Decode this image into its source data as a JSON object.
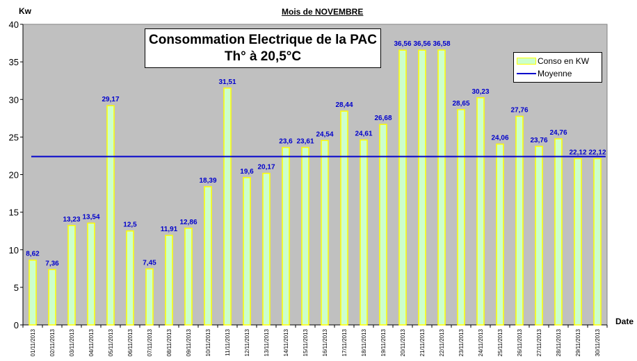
{
  "chart_data": {
    "type": "bar",
    "title": "Consommation Electrique de la PAC",
    "subtitle": "Th° à  20,5°C",
    "header": "Mois  de  NOVEMBRE",
    "xlabel": "Date",
    "ylabel": "Kw",
    "ylim": [
      0,
      40
    ],
    "yticks": [
      "0",
      "5",
      "10",
      "15",
      "20",
      "25",
      "30",
      "35",
      "40"
    ],
    "grid": false,
    "legend_position": "top-right",
    "categories": [
      "01/11/2013",
      "02/11/2013",
      "03/11/2013",
      "04/11/2013",
      "05/11/2013",
      "06/11/2013",
      "07/11/2013",
      "08/11/2013",
      "09/11/2013",
      "10/11/2013",
      "11/11/2013",
      "12/11/2013",
      "13/11/2013",
      "14/11/2013",
      "15/11/2013",
      "16/11/2013",
      "17/11/2013",
      "18/11/2013",
      "19/11/2013",
      "20/11/2013",
      "21/11/2013",
      "22/11/2013",
      "23/11/2013",
      "24/11/2013",
      "25/11/2013",
      "26/11/2013",
      "27/11/2013",
      "28/11/2013",
      "29/11/2013",
      "30/11/2013"
    ],
    "series": [
      {
        "name": "Conso en KW",
        "type": "bar",
        "color": "#ccffcc",
        "edge_color": "#ffff00",
        "values": [
          8.62,
          7.36,
          13.23,
          13.54,
          29.17,
          12.5,
          7.45,
          11.91,
          12.86,
          18.39,
          31.51,
          19.6,
          20.17,
          23.6,
          23.61,
          24.54,
          28.44,
          24.61,
          26.68,
          36.56,
          36.56,
          36.58,
          28.65,
          30.23,
          24.06,
          27.76,
          23.76,
          24.76,
          22.12,
          22.12
        ],
        "labels": [
          "8,62",
          "7,36",
          "13,23",
          "13,54",
          "29,17",
          "12,5",
          "7,45",
          "11,91",
          "12,86",
          "18,39",
          "31,51",
          "19,6",
          "20,17",
          "23,6",
          "23,61",
          "24,54",
          "28,44",
          "24,61",
          "26,68",
          "36,56",
          "36,56",
          "36,58",
          "28,65",
          "30,23",
          "24,06",
          "27,76",
          "23,76",
          "24,76",
          "22,12",
          "22,12"
        ]
      },
      {
        "name": "Moyenne",
        "type": "line",
        "color": "#0000cc",
        "value": 22.4
      }
    ],
    "plot_background": "#c0c0c0",
    "label_color": "#0000cc"
  }
}
